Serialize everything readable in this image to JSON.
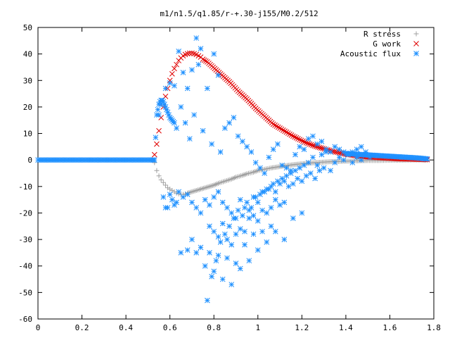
{
  "chart_data": {
    "type": "scatter",
    "title": "m1/n1.5/q1.85/r-+.30-j155/M0.2/512",
    "xlabel": "",
    "ylabel": "",
    "xlim": [
      0,
      1.8
    ],
    "ylim": [
      -60,
      50
    ],
    "x_ticks": [
      "0",
      "0.2",
      "0.4",
      "0.6",
      "0.8",
      "1",
      "1.2",
      "1.4",
      "1.6",
      "1.8"
    ],
    "y_ticks": [
      "-60",
      "-50",
      "-40",
      "-30",
      "-20",
      "-10",
      "0",
      "10",
      "20",
      "30",
      "40",
      "50"
    ],
    "grid": false,
    "legend_position": "top-right",
    "series": [
      {
        "name": "R stress",
        "marker": "plus",
        "color": "#a0a0a0",
        "x": [
          0.53,
          0.54,
          0.55,
          0.56,
          0.57,
          0.58,
          0.59,
          0.6,
          0.61,
          0.62,
          0.63,
          0.64,
          0.65,
          0.66,
          0.67,
          0.68,
          0.7,
          0.72,
          0.74,
          0.76,
          0.78,
          0.8,
          0.82,
          0.85,
          0.88,
          0.9,
          0.93,
          0.95,
          0.98,
          1.0,
          1.03,
          1.06,
          1.1,
          1.14,
          1.18,
          1.22,
          1.26,
          1.3,
          1.34,
          1.38,
          1.42,
          1.46,
          1.5,
          1.55,
          1.6,
          1.65,
          1.7,
          1.75,
          1.77
        ],
        "y": [
          -1,
          -4,
          -6,
          -7.5,
          -8.5,
          -9.5,
          -10.5,
          -11,
          -11.5,
          -12,
          -12.5,
          -12.8,
          -13,
          -13,
          -12.8,
          -12.5,
          -12,
          -11.5,
          -11,
          -10.5,
          -10,
          -9.5,
          -8.8,
          -8,
          -7.2,
          -6.5,
          -5.8,
          -5.2,
          -4.6,
          -4,
          -3.5,
          -3,
          -2.5,
          -2,
          -1.6,
          -1.3,
          -1,
          -0.8,
          -0.6,
          -0.5,
          -0.4,
          -0.3,
          -0.2,
          -0.2,
          -0.1,
          -0.1,
          0,
          0,
          0
        ]
      },
      {
        "name": "G work",
        "marker": "cross",
        "color": "#e00000",
        "x": [
          0.53,
          0.54,
          0.55,
          0.56,
          0.57,
          0.58,
          0.59,
          0.6,
          0.61,
          0.62,
          0.63,
          0.64,
          0.65,
          0.66,
          0.67,
          0.68,
          0.69,
          0.7,
          0.71,
          0.72,
          0.73,
          0.74,
          0.75,
          0.77,
          0.79,
          0.81,
          0.83,
          0.85,
          0.87,
          0.89,
          0.91,
          0.93,
          0.95,
          0.97,
          0.99,
          1.01,
          1.03,
          1.05,
          1.07,
          1.1,
          1.13,
          1.16,
          1.19,
          1.22,
          1.25,
          1.28,
          1.31,
          1.34,
          1.37,
          1.4,
          1.44,
          1.48,
          1.52,
          1.56,
          1.6,
          1.65,
          1.7,
          1.75,
          1.77
        ],
        "y": [
          2,
          6,
          11,
          16,
          20,
          24,
          27,
          30,
          32.5,
          34.5,
          36,
          37.5,
          38.5,
          39.3,
          39.8,
          40.1,
          40.3,
          40.3,
          40.1,
          39.8,
          39.3,
          38.8,
          38,
          37,
          35.5,
          34,
          32.5,
          31,
          29.5,
          27.8,
          26,
          24.5,
          23,
          21.3,
          19.5,
          18,
          16.5,
          15,
          13.5,
          12,
          10.5,
          9,
          7.7,
          6.5,
          5.5,
          4.7,
          4,
          3.3,
          2.7,
          2.2,
          1.7,
          1.3,
          1,
          0.8,
          0.6,
          0.4,
          0.3,
          0.2,
          0.1
        ]
      },
      {
        "name": "Acoustic flux",
        "marker": "star",
        "color": "#1e90ff",
        "curve_x": [
          0.0,
          0.02,
          0.04,
          0.06,
          0.08,
          0.1,
          0.12,
          0.14,
          0.16,
          0.18,
          0.2,
          0.22,
          0.24,
          0.26,
          0.28,
          0.3,
          0.32,
          0.34,
          0.36,
          0.38,
          0.4,
          0.42,
          0.44,
          0.46,
          0.48,
          0.5,
          0.52,
          0.53,
          0.54,
          0.545,
          0.55,
          0.555,
          0.56,
          0.565,
          0.57,
          0.575,
          0.58,
          0.585,
          0.59,
          0.6,
          0.61,
          0.62,
          1.4,
          1.44,
          1.48,
          1.52,
          1.56,
          1.6,
          1.64,
          1.68,
          1.72,
          1.76,
          1.77
        ],
        "curve_y": [
          0,
          0,
          0,
          0,
          0,
          0,
          0,
          0,
          0,
          0,
          0,
          0,
          0,
          0,
          0,
          0,
          0,
          0,
          0,
          0,
          0,
          0,
          0,
          0,
          0,
          0,
          0,
          0,
          17,
          19,
          21,
          22,
          22.5,
          22.5,
          22,
          21,
          20,
          19,
          18,
          16,
          15,
          14,
          2.5,
          2.2,
          2,
          1.8,
          1.6,
          1.4,
          1.2,
          1,
          0.8,
          0.5,
          0.4
        ],
        "scatter_x": [
          0.72,
          0.74,
          0.7,
          0.8,
          0.82,
          0.77,
          0.73,
          0.64,
          0.68,
          0.66,
          0.6,
          0.62,
          0.58,
          0.56,
          0.55,
          0.63,
          0.65,
          0.67,
          0.69,
          0.71,
          0.75,
          0.79,
          0.83,
          0.85,
          0.87,
          0.89,
          0.91,
          0.93,
          0.95,
          0.97,
          0.99,
          1.01,
          1.03,
          1.05,
          1.07,
          1.09,
          1.11,
          1.13,
          1.15,
          1.17,
          1.19,
          1.21,
          1.23,
          1.25,
          1.27,
          1.29,
          1.31,
          1.33,
          1.35,
          1.37,
          1.39,
          1.41,
          1.43,
          1.45,
          1.47,
          1.49,
          0.64,
          0.66,
          0.68,
          0.7,
          0.72,
          0.74,
          0.76,
          0.78,
          0.8,
          0.82,
          0.84,
          0.86,
          0.88,
          0.9,
          0.92,
          0.94,
          0.96,
          0.98,
          1.0,
          1.02,
          1.04,
          1.06,
          1.08,
          1.1,
          1.12,
          1.14,
          1.16,
          1.18,
          1.2,
          1.22,
          1.24,
          1.26,
          1.28,
          1.3,
          0.78,
          0.8,
          0.82,
          0.84,
          0.86,
          0.88,
          0.9,
          0.92,
          0.94,
          0.96,
          0.98,
          1.0,
          1.02,
          1.04,
          1.06,
          1.08,
          1.1,
          1.12,
          0.7,
          0.74,
          0.78,
          0.82,
          0.86,
          0.9,
          0.94,
          0.98,
          1.02,
          1.06,
          0.65,
          0.68,
          0.72,
          0.76,
          0.8,
          0.84,
          0.88,
          0.92,
          0.96,
          1.0,
          1.04,
          1.08,
          1.12,
          1.16,
          1.2,
          0.77,
          0.79,
          0.81,
          0.83,
          0.85,
          0.87,
          0.89,
          0.91,
          0.93,
          0.95,
          0.97,
          0.99,
          1.01,
          1.03,
          1.05,
          1.07,
          1.09,
          1.11,
          1.13,
          1.15,
          1.17,
          1.19,
          1.21,
          1.23,
          1.25,
          1.27,
          1.29,
          1.31,
          1.33,
          1.35,
          1.37,
          1.39,
          1.41,
          1.43,
          1.45,
          1.47,
          1.49,
          1.51,
          0.59,
          0.62,
          0.61,
          0.57,
          0.58,
          0.6,
          0.63
        ],
        "scatter_y": [
          46,
          42,
          34,
          40,
          32,
          27,
          36,
          41,
          27,
          33,
          29,
          28,
          27,
          21,
          17,
          12,
          20,
          14,
          8,
          17,
          11,
          6,
          3,
          12,
          14,
          16,
          9,
          7,
          5,
          3,
          -1,
          -3,
          -5,
          1,
          4,
          6,
          -2,
          -3,
          -4,
          2,
          5,
          4,
          8,
          9,
          6,
          7,
          4,
          3,
          5,
          4,
          3,
          2,
          3,
          4,
          5,
          3,
          -12,
          -14,
          -13,
          -16,
          -18,
          -20,
          -15,
          -17,
          -14,
          -12,
          -16,
          -18,
          -20,
          -22,
          -15,
          -18,
          -19,
          -14,
          -16,
          -12,
          -11,
          -10,
          -12,
          -9,
          -8,
          -10,
          -9,
          -7,
          -8,
          -6,
          -5,
          -7,
          -4,
          -3,
          -25,
          -27,
          -29,
          -24,
          -30,
          -32,
          -28,
          -26,
          -27,
          -22,
          -21,
          -23,
          -19,
          -20,
          -18,
          -15,
          -17,
          -16,
          -30,
          -33,
          -35,
          -36,
          -37,
          -39,
          -32,
          -28,
          -27,
          -25,
          -35,
          -34,
          -35,
          -40,
          -42,
          -45,
          -47,
          -41,
          -38,
          -34,
          -31,
          -27,
          -30,
          -22,
          -20,
          -53,
          -44,
          -38,
          -31,
          -28,
          -25,
          -22,
          -19,
          -21,
          -16,
          -18,
          -14,
          -13,
          -12,
          -11,
          -9,
          -8,
          -7,
          -6,
          -5,
          -4,
          -3,
          -2,
          -1,
          1,
          -2,
          2,
          3,
          -4,
          -1,
          1,
          0,
          2,
          -1,
          1,
          0,
          2,
          1,
          -18,
          -17,
          -15,
          -14,
          -18,
          -13,
          -16
        ]
      }
    ]
  }
}
